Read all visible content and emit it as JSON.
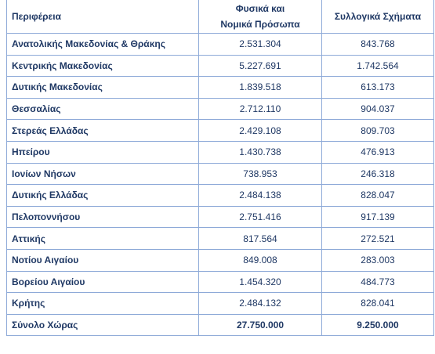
{
  "table": {
    "header": [
      "Περιφέρεια",
      [
        "Φυσικά και",
        "Νομικά Πρόσωπα"
      ],
      "Συλλογικά Σχήματα"
    ],
    "rows": [
      [
        "Ανατολικής Μακεδονίας & Θράκης",
        "2.531.304",
        "843.768"
      ],
      [
        "Κεντρικής Μακεδονίας",
        "5.227.691",
        "1.742.564"
      ],
      [
        "Δυτικής Μακεδονίας",
        "1.839.518",
        "613.173"
      ],
      [
        "Θεσσαλίας",
        "2.712.110",
        "904.037"
      ],
      [
        "Στερεάς Ελλάδας",
        "2.429.108",
        "809.703"
      ],
      [
        "Ηπείρου",
        "1.430.738",
        "476.913"
      ],
      [
        "Ιονίων Νήσων",
        "738.953",
        "246.318"
      ],
      [
        "Δυτικής Ελλάδας",
        "2.484.138",
        "828.047"
      ],
      [
        "Πελοποννήσου",
        "2.751.416",
        "917.139"
      ],
      [
        "Αττικής",
        "817.564",
        "272.521"
      ],
      [
        "Νοτίου Αιγαίου",
        "849.008",
        "283.003"
      ],
      [
        "Βορείου Αιγαίου",
        "1.454.320",
        "484.773"
      ],
      [
        "Κρήτης",
        "2.484.132",
        "828.041"
      ],
      [
        "Σύνολο Χώρας",
        "27.750.000",
        "9.250.000"
      ]
    ]
  }
}
